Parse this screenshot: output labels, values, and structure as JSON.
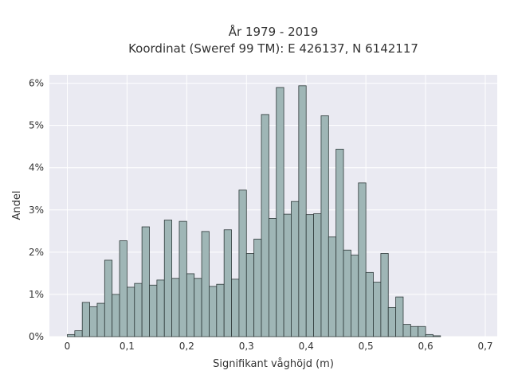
{
  "chart_data": {
    "type": "bar",
    "title": "År 1979 - 2019",
    "subtitle": "Koordinat (Sweref 99 TM): E 426137, N 6142117",
    "xlabel": "Signifikant våghöjd (m)",
    "ylabel": "Andel",
    "xlim": [
      -0.03,
      0.72
    ],
    "ylim": [
      0,
      6.2
    ],
    "x_ticks": [
      0,
      0.1,
      0.2,
      0.3,
      0.4,
      0.5,
      0.6,
      0.7
    ],
    "x_tick_labels": [
      "0",
      "0,1",
      "0,2",
      "0,3",
      "0,4",
      "0,5",
      "0,6",
      "0,7"
    ],
    "y_ticks": [
      0,
      1,
      2,
      3,
      4,
      5,
      6
    ],
    "y_tick_labels": [
      "0%",
      "1%",
      "2%",
      "3%",
      "4%",
      "5%",
      "6%"
    ],
    "grid": true,
    "bin_width": 0.0125,
    "bin_start": 0,
    "values": [
      0.05,
      0.14,
      0.81,
      0.71,
      0.79,
      1.81,
      1.0,
      2.27,
      1.17,
      1.26,
      2.6,
      1.22,
      1.34,
      2.76,
      1.38,
      2.73,
      1.49,
      1.38,
      2.49,
      1.19,
      1.24,
      2.53,
      1.36,
      3.47,
      1.97,
      2.31,
      5.26,
      2.8,
      5.9,
      2.9,
      3.2,
      5.94,
      2.89,
      2.91,
      5.23,
      2.36,
      4.44,
      2.05,
      1.93,
      3.64,
      1.52,
      1.29,
      1.97,
      0.69,
      0.94,
      0.29,
      0.24,
      0.24,
      0.05,
      0.02
    ],
    "colors": {
      "bar_fill": "#9fb6b6",
      "bar_edge": "#2f3a3a",
      "plot_background": "#eaeaf2",
      "grid": "#ffffff",
      "text": "#333333"
    }
  }
}
